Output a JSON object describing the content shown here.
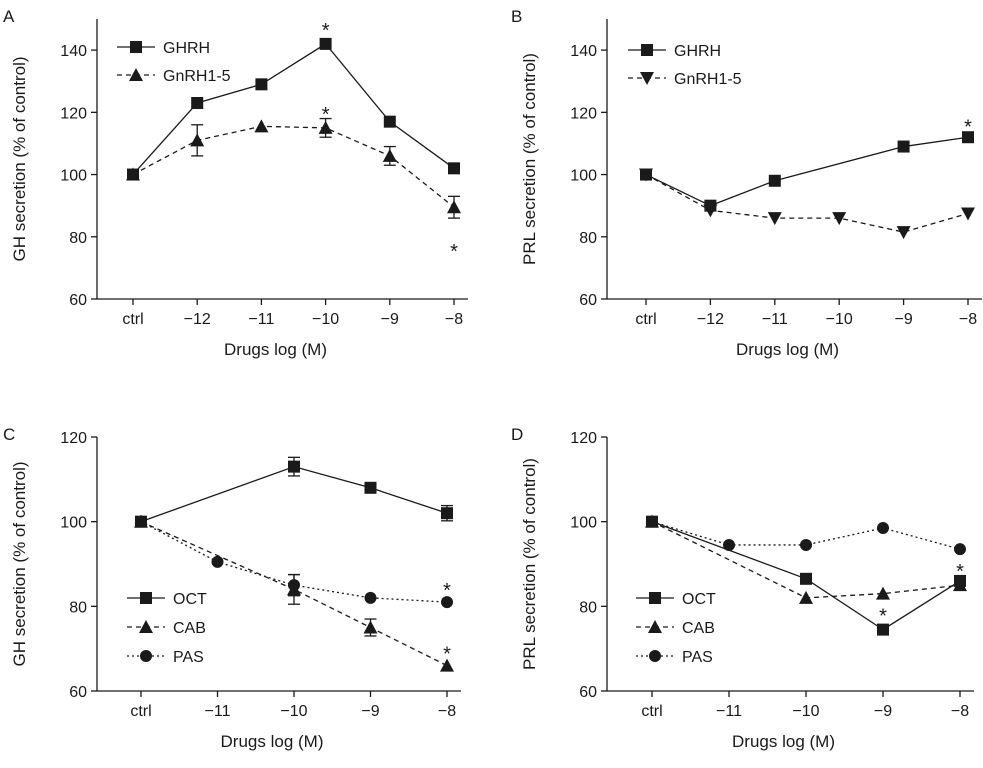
{
  "chart_data": [
    {
      "panel": "A",
      "type": "line",
      "xlabel": "Drugs log (M)",
      "ylabel": "GH secretion (% of control)",
      "categories": [
        "ctrl",
        "−12",
        "−11",
        "−10",
        "−9",
        "−8"
      ],
      "ylim": [
        60,
        150
      ],
      "yticks": [
        "60",
        "80",
        "100",
        "120",
        "140"
      ],
      "legend": "top-left",
      "series": [
        {
          "name": "GHRH",
          "marker": "square",
          "dash": "solid",
          "values": [
            100,
            123,
            129,
            142,
            117,
            102
          ],
          "errors": [
            0,
            0,
            0,
            0,
            0,
            0
          ]
        },
        {
          "name": "GnRH1-5",
          "marker": "triangle-up",
          "dash": "dashed",
          "values": [
            100,
            111,
            115.5,
            115,
            106,
            89.5
          ],
          "errors": [
            0,
            5,
            0,
            3,
            3,
            3.5
          ]
        }
      ],
      "annotations": [
        {
          "label": "*",
          "x": "−10",
          "y": 148
        },
        {
          "label": "*",
          "x": "−10",
          "y": 121
        },
        {
          "label": "*",
          "x": "−8",
          "y": 77
        }
      ]
    },
    {
      "panel": "B",
      "type": "line",
      "xlabel": "Drugs log (M)",
      "ylabel": "PRL secretion (% of control)",
      "categories": [
        "ctrl",
        "−12",
        "−11",
        "−10",
        "−9",
        "−8"
      ],
      "ylim": [
        60,
        150
      ],
      "yticks": [
        "60",
        "80",
        "100",
        "120",
        "140"
      ],
      "legend": "top-left",
      "series": [
        {
          "name": "GHRH",
          "marker": "square",
          "dash": "solid",
          "values": [
            100,
            90,
            98,
            null,
            109,
            112
          ],
          "errors": [
            0,
            0,
            0,
            0,
            0,
            0
          ]
        },
        {
          "name": "GnRH1-5",
          "marker": "triangle-down",
          "dash": "dashed",
          "values": [
            100,
            88.5,
            86,
            86,
            81.5,
            87.5
          ],
          "errors": [
            0,
            0,
            0,
            0,
            0,
            0
          ]
        }
      ],
      "annotations": [
        {
          "label": "*",
          "x": "−8",
          "y": 117
        }
      ]
    },
    {
      "panel": "C",
      "type": "line",
      "xlabel": "Drugs log (M)",
      "ylabel": "GH secretion (% of control)",
      "categories": [
        "ctrl",
        "−11",
        "−10",
        "−9",
        "−8"
      ],
      "ylim": [
        60,
        120
      ],
      "yticks": [
        "60",
        "80",
        "100",
        "120"
      ],
      "legend": "bottom-left",
      "series": [
        {
          "name": "OCT",
          "marker": "square",
          "dash": "solid",
          "values": [
            100,
            null,
            113,
            108,
            102
          ],
          "errors": [
            0,
            0,
            2.2,
            0,
            1.8
          ]
        },
        {
          "name": "CAB",
          "marker": "triangle-up",
          "dash": "dashed",
          "values": [
            100,
            null,
            84,
            75,
            66
          ],
          "errors": [
            0,
            0,
            3.5,
            2,
            0
          ]
        },
        {
          "name": "PAS",
          "marker": "circle",
          "dash": "dotted",
          "values": [
            100,
            90.5,
            85,
            82,
            81
          ],
          "errors": [
            0,
            0,
            2.5,
            0,
            0
          ]
        }
      ],
      "annotations": [
        {
          "label": "*",
          "x": "−8",
          "y": 85
        },
        {
          "label": "*",
          "x": "−8",
          "y": 70
        }
      ]
    },
    {
      "panel": "D",
      "type": "line",
      "xlabel": "Drugs log (M)",
      "ylabel": "PRL secretion (% of control)",
      "categories": [
        "ctrl",
        "−11",
        "−10",
        "−9",
        "−8"
      ],
      "ylim": [
        60,
        120
      ],
      "yticks": [
        "60",
        "80",
        "100",
        "120"
      ],
      "legend": "bottom-left",
      "series": [
        {
          "name": "OCT",
          "marker": "square",
          "dash": "solid",
          "values": [
            100,
            null,
            86.5,
            74.5,
            86
          ],
          "errors": [
            0,
            0,
            0,
            0,
            0
          ]
        },
        {
          "name": "CAB",
          "marker": "triangle-up",
          "dash": "dashed",
          "values": [
            100,
            null,
            82,
            83,
            85
          ],
          "errors": [
            0,
            0,
            0,
            0,
            0
          ]
        },
        {
          "name": "PAS",
          "marker": "circle",
          "dash": "dotted",
          "values": [
            100,
            94.5,
            94.5,
            98.5,
            93.5
          ],
          "errors": [
            0,
            0,
            0,
            0,
            0
          ]
        }
      ],
      "annotations": [
        {
          "label": "*",
          "x": "−9",
          "y": 79
        },
        {
          "label": "*",
          "x": "−8",
          "y": 89.5
        }
      ]
    }
  ]
}
